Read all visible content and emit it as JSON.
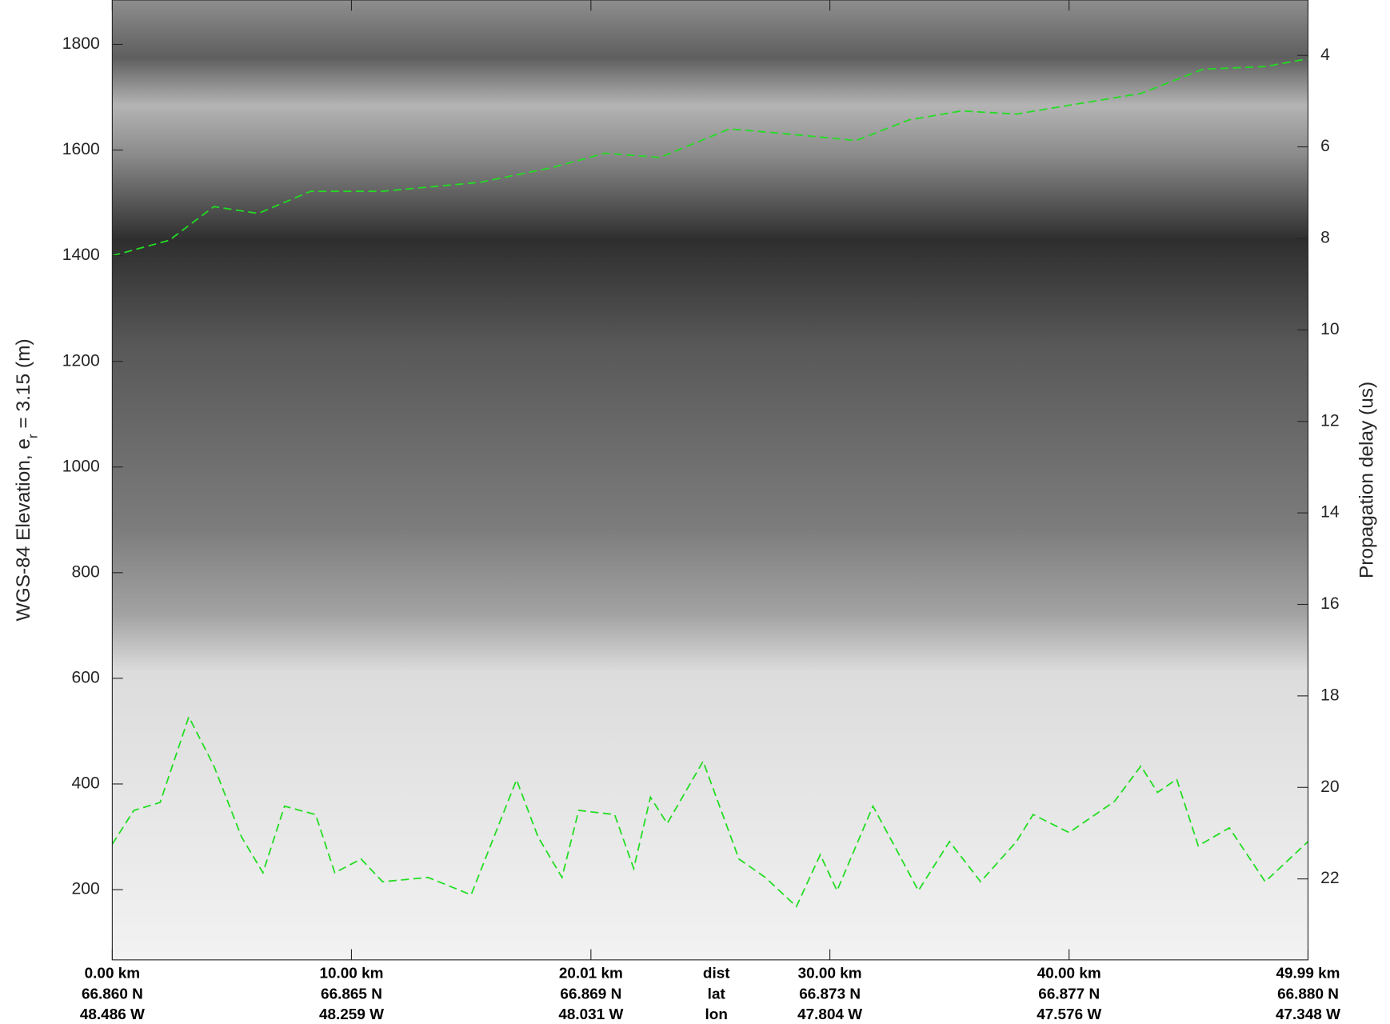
{
  "chart_data": {
    "type": "line",
    "xlabel_rows": [
      "dist",
      "lat",
      "lon"
    ],
    "ylabel": {
      "main": "WGS-84 Elevation, e",
      "sub": "r",
      "rest": " = 3.15 (m)"
    },
    "y2label": "Propagation delay (us)",
    "xlim": [
      0,
      49.99
    ],
    "xticks": [
      {
        "value": 0,
        "label": "0.00 km"
      },
      {
        "value": 10,
        "label": "10.00 km"
      },
      {
        "value": 20.01,
        "label": "20.01 km"
      },
      {
        "value": 30,
        "label": "30.00 km"
      },
      {
        "value": 40,
        "label": "40.00 km"
      },
      {
        "value": 49.99,
        "label": "49.99 km"
      }
    ],
    "xtick_lat": [
      "66.860 N",
      "66.865 N",
      "66.869 N",
      "66.873 N",
      "66.877 N",
      "66.880 N"
    ],
    "xtick_lon": [
      "48.486 W",
      "48.259 W",
      "48.031 W",
      "47.804 W",
      "47.576 W",
      "47.348 W"
    ],
    "ylim": [
      67,
      1884
    ],
    "yticks": [
      200,
      400,
      600,
      800,
      1000,
      1200,
      1400,
      1600,
      1800
    ],
    "y2lim": [
      23.77,
      2.79
    ],
    "y2ticks": [
      4,
      6,
      8,
      10,
      12,
      14,
      16,
      18,
      20,
      22
    ],
    "series": [
      {
        "color": "#22dd22",
        "x": [
          0,
          2.38,
          4.25,
          6.1,
          8.3,
          11.3,
          15.4,
          18.4,
          20.6,
          22.9,
          25.8,
          28.1,
          31.1,
          33.3,
          35.5,
          37.8,
          40.7,
          43.0,
          45.6,
          48.2,
          49.99
        ],
        "values": [
          1400,
          1429,
          1493,
          1480,
          1522,
          1522,
          1539,
          1567,
          1594,
          1586,
          1640,
          1631,
          1618,
          1657,
          1674,
          1668,
          1690,
          1707,
          1753,
          1758,
          1773
        ]
      },
      {
        "color": "#22dd22",
        "x": [
          0,
          0.9,
          2.0,
          3.2,
          4.25,
          5.4,
          6.3,
          7.2,
          8.5,
          9.3,
          10.4,
          11.3,
          13.2,
          15.0,
          16.9,
          17.8,
          18.8,
          19.5,
          21.0,
          21.8,
          22.5,
          23.2,
          24.7,
          26.2,
          27.3,
          28.6,
          29.6,
          30.3,
          31.8,
          32.6,
          33.7,
          35.0,
          36.3,
          37.8,
          38.5,
          40.0,
          41.9,
          43.0,
          43.7,
          44.5,
          45.4,
          46.7,
          48.2,
          49.99
        ],
        "values": [
          286,
          350,
          365,
          527,
          434,
          300,
          232,
          358,
          342,
          232,
          258,
          215,
          223,
          190,
          408,
          300,
          223,
          350,
          342,
          240,
          375,
          325,
          443,
          258,
          223,
          168,
          266,
          198,
          358,
          291,
          198,
          291,
          215,
          291,
          342,
          308,
          367,
          434,
          384,
          409,
          283,
          317,
          215,
          291
        ]
      }
    ]
  }
}
